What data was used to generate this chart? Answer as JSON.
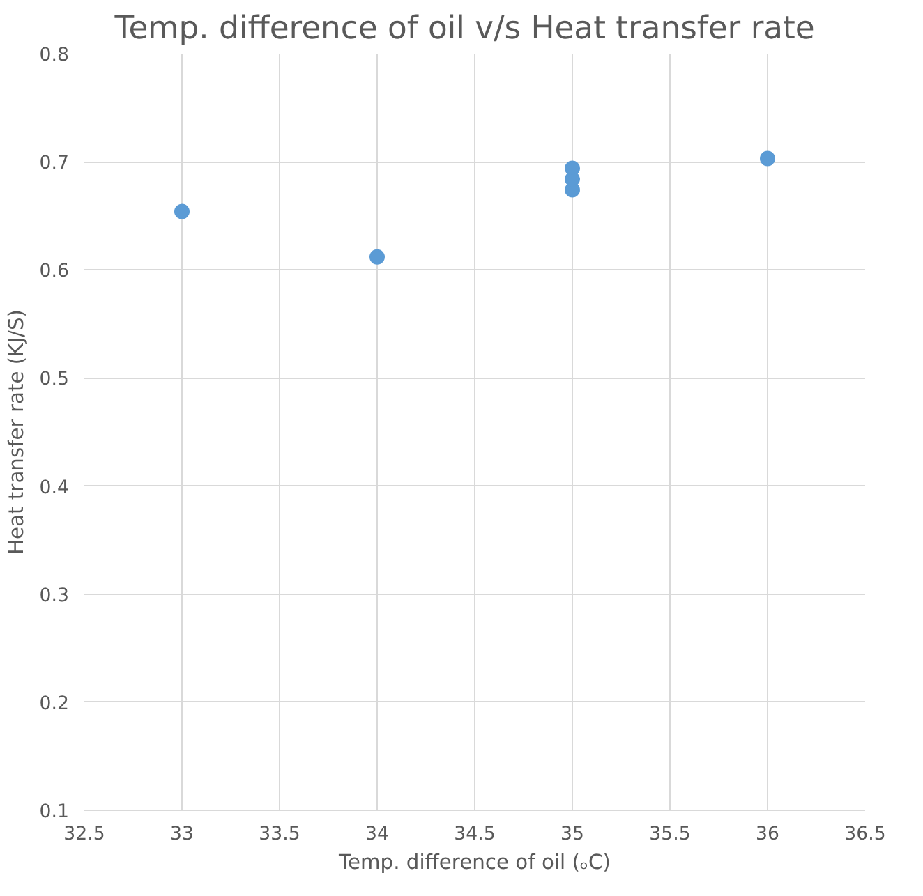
{
  "chart_data": {
    "type": "scatter",
    "title": "Temp. difference of oil   v/s Heat transfer rate",
    "xlabel": "Temp. difference of oil (ₒC)",
    "ylabel": "Heat transfer rate (KJ/S)",
    "x": [
      33,
      34,
      35,
      35,
      35,
      36
    ],
    "series": [
      {
        "color": "#5b9bd5",
        "values": [
          0.654,
          0.612,
          0.674,
          0.684,
          0.694,
          0.703
        ]
      }
    ],
    "xlim": [
      32.5,
      36.5
    ],
    "xticks": [
      32.5,
      33,
      33.5,
      34,
      34.5,
      35,
      35.5,
      36,
      36.5
    ],
    "ylim": [
      0.1,
      0.8
    ],
    "yticks": [
      0.1,
      0.2,
      0.3,
      0.4,
      0.5,
      0.6,
      0.7,
      0.8
    ],
    "grid": true,
    "marker": "circle"
  }
}
